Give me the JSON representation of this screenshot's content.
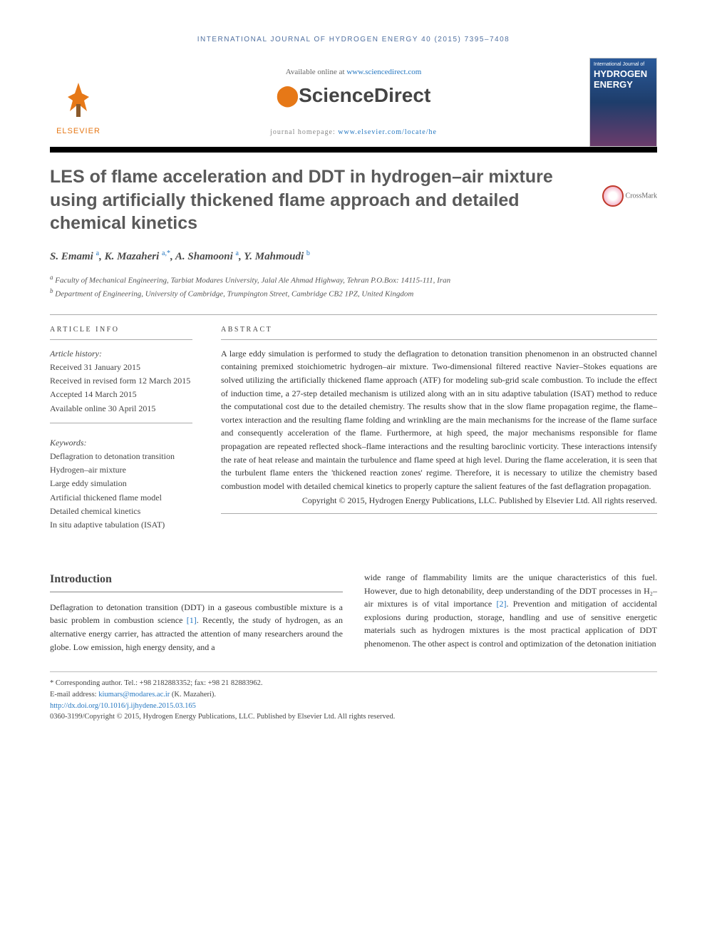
{
  "journal_header": "INTERNATIONAL JOURNAL OF HYDROGEN ENERGY 40 (2015) 7395–7408",
  "available_text": "Available online at ",
  "sciencedirect_url": "www.sciencedirect.com",
  "sciencedirect_logo": "ScienceDirect",
  "elsevier_label": "ELSEVIER",
  "homepage_label": "journal homepage: ",
  "homepage_url": "www.elsevier.com/locate/he",
  "cover": {
    "line1": "International Journal of",
    "line2": "HYDROGEN",
    "line3": "ENERGY"
  },
  "crossmark": "CrossMark",
  "title": "LES of flame acceleration and DDT in hydrogen–air mixture using artificially thickened flame approach and detailed chemical kinetics",
  "authors_html": "S. Emami",
  "authors": [
    {
      "name": "S. Emami",
      "aff": "a"
    },
    {
      "name": "K. Mazaheri",
      "aff": "a,*"
    },
    {
      "name": "A. Shamooni",
      "aff": "a"
    },
    {
      "name": "Y. Mahmoudi",
      "aff": "b"
    }
  ],
  "affiliations": [
    {
      "sup": "a",
      "text": "Faculty of Mechanical Engineering, Tarbiat Modares University, Jalal Ale Ahmad Highway, Tehran P.O.Box: 14115-111, Iran"
    },
    {
      "sup": "b",
      "text": "Department of Engineering, University of Cambridge, Trumpington Street, Cambridge CB2 1PZ, United Kingdom"
    }
  ],
  "article_info_label": "ARTICLE INFO",
  "abstract_label": "ABSTRACT",
  "history": {
    "label": "Article history:",
    "received": "Received 31 January 2015",
    "revised": "Received in revised form 12 March 2015",
    "accepted": "Accepted 14 March 2015",
    "online": "Available online 30 April 2015"
  },
  "keywords_label": "Keywords:",
  "keywords": [
    "Deflagration to detonation transition",
    "Hydrogen–air mixture",
    "Large eddy simulation",
    "Artificial thickened flame model",
    "Detailed chemical kinetics",
    "In situ adaptive tabulation (ISAT)"
  ],
  "abstract": "A large eddy simulation is performed to study the deflagration to detonation transition phenomenon in an obstructed channel containing premixed stoichiometric hydrogen–air mixture. Two-dimensional filtered reactive Navier–Stokes equations are solved utilizing the artificially thickened flame approach (ATF) for modeling sub-grid scale combustion. To include the effect of induction time, a 27-step detailed mechanism is utilized along with an in situ adaptive tabulation (ISAT) method to reduce the computational cost due to the detailed chemistry. The results show that in the slow flame propagation regime, the flame–vortex interaction and the resulting flame folding and wrinkling are the main mechanisms for the increase of the flame surface and consequently acceleration of the flame. Furthermore, at high speed, the major mechanisms responsible for flame propagation are repeated reflected shock–flame interactions and the resulting baroclinic vorticity. These interactions intensify the rate of heat release and maintain the turbulence and flame speed at high level. During the flame acceleration, it is seen that the turbulent flame enters the 'thickened reaction zones' regime. Therefore, it is necessary to utilize the chemistry based combustion model with detailed chemical kinetics to properly capture the salient features of the fast deflagration propagation.",
  "copyright": "Copyright © 2015, Hydrogen Energy Publications, LLC. Published by Elsevier Ltd. All rights reserved.",
  "intro_heading": "Introduction",
  "intro_col1": "Deflagration to detonation transition (DDT) in a gaseous combustible mixture is a basic problem in combustion science [1]. Recently, the study of hydrogen, as an alternative energy carrier, has attracted the attention of many researchers around the globe. Low emission, high energy density, and a",
  "intro_col2": "wide range of flammability limits are the unique characteristics of this fuel. However, due to high detonability, deep understanding of the DDT processes in H₂–air mixtures is of vital importance [2]. Prevention and mitigation of accidental explosions during production, storage, handling and use of sensitive energetic materials such as hydrogen mixtures is the most practical application of DDT phenomenon. The other aspect is control and optimization of the detonation initiation",
  "footer": {
    "corresponding": "* Corresponding author. Tel.: +98 2182883352; fax: +98 21 82883962.",
    "email_label": "E-mail address: ",
    "email": "kiumars@modares.ac.ir",
    "email_author": " (K. Mazaheri).",
    "doi": "http://dx.doi.org/10.1016/j.ijhydene.2015.03.165",
    "issn_copyright": "0360-3199/Copyright © 2015, Hydrogen Energy Publications, LLC. Published by Elsevier Ltd. All rights reserved."
  },
  "colors": {
    "link_blue": "#2577c1",
    "elsevier_orange": "#e67817",
    "header_blue": "#5070a0",
    "text_gray": "#333333",
    "heading_gray": "#5a5a5a"
  },
  "typography": {
    "title_fontsize": 25,
    "body_fontsize": 12,
    "abstract_fontsize": 12,
    "label_letterspacing": 2.5
  }
}
